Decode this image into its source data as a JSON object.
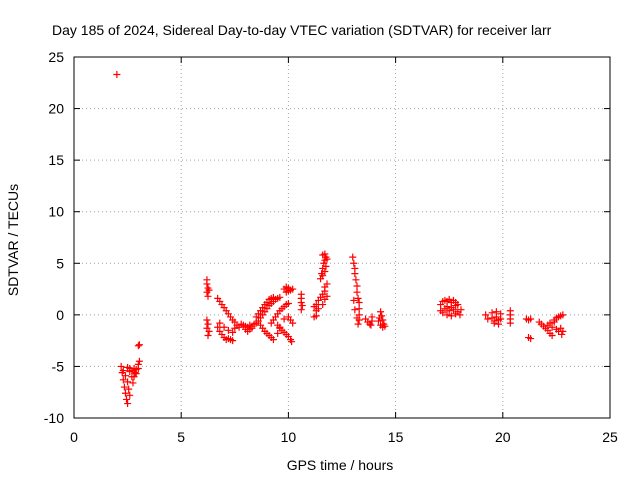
{
  "chart_data": {
    "type": "scatter",
    "title": "Day 185 of 2024, Sidereal Day-to-day VTEC variation (SDTVAR) for receiver larr",
    "xlabel": "GPS time / hours",
    "ylabel": "SDTVAR / TECUs",
    "xlim": [
      0,
      25
    ],
    "ylim": [
      -10,
      25
    ],
    "x_ticks": [
      0,
      5,
      10,
      15,
      20,
      25
    ],
    "y_ticks": [
      -10,
      -5,
      0,
      5,
      10,
      15,
      20,
      25
    ],
    "x_tick_labels": [
      "0",
      "5",
      "10",
      "15",
      "20",
      "25"
    ],
    "y_tick_labels": [
      "-10",
      "-5",
      "0",
      "5",
      "10",
      "15",
      "20",
      "25"
    ],
    "grid": true,
    "marker": "+",
    "series": [
      {
        "name": "SDTVAR",
        "color": "#ff0000",
        "points": [
          [
            2.0,
            23.3
          ],
          [
            2.2,
            -5.0
          ],
          [
            2.25,
            -5.6
          ],
          [
            2.3,
            -6.3
          ],
          [
            2.35,
            -7.0
          ],
          [
            2.4,
            -7.6
          ],
          [
            2.45,
            -8.2
          ],
          [
            2.5,
            -8.6
          ],
          [
            2.3,
            -5.4
          ],
          [
            2.4,
            -5.9
          ],
          [
            2.5,
            -6.5
          ],
          [
            2.55,
            -7.2
          ],
          [
            2.6,
            -7.8
          ],
          [
            2.5,
            -5.1
          ],
          [
            2.6,
            -5.5
          ],
          [
            2.7,
            -6.0
          ],
          [
            2.75,
            -6.6
          ],
          [
            2.8,
            -6.0
          ],
          [
            2.85,
            -5.6
          ],
          [
            2.9,
            -5.3
          ],
          [
            2.6,
            -5.2
          ],
          [
            2.7,
            -5.4
          ],
          [
            2.8,
            -5.2
          ],
          [
            2.9,
            -5.7
          ],
          [
            3.0,
            -5.2
          ],
          [
            3.0,
            -4.8
          ],
          [
            3.05,
            -4.5
          ],
          [
            3.0,
            -3.0
          ],
          [
            3.05,
            -2.9
          ],
          [
            6.2,
            3.4
          ],
          [
            6.2,
            3.0
          ],
          [
            6.25,
            2.6
          ],
          [
            6.2,
            2.2
          ],
          [
            6.25,
            1.8
          ],
          [
            6.3,
            2.4
          ],
          [
            6.2,
            -0.5
          ],
          [
            6.25,
            -0.9
          ],
          [
            6.2,
            -1.3
          ],
          [
            6.3,
            -1.6
          ],
          [
            6.25,
            -2.0
          ],
          [
            6.7,
            1.6
          ],
          [
            6.8,
            1.3
          ],
          [
            6.9,
            1.0
          ],
          [
            7.0,
            0.7
          ],
          [
            7.1,
            0.4
          ],
          [
            7.2,
            0.1
          ],
          [
            7.3,
            -0.2
          ],
          [
            7.4,
            -0.5
          ],
          [
            7.5,
            -0.7
          ],
          [
            6.7,
            -1.2
          ],
          [
            6.8,
            -1.6
          ],
          [
            6.9,
            -1.9
          ],
          [
            7.0,
            -2.2
          ],
          [
            7.1,
            -2.4
          ],
          [
            7.2,
            -2.3
          ],
          [
            7.3,
            -2.4
          ],
          [
            7.4,
            -2.5
          ],
          [
            6.8,
            -0.8
          ],
          [
            7.0,
            -1.2
          ],
          [
            7.2,
            -1.5
          ],
          [
            7.4,
            -1.7
          ],
          [
            7.5,
            -1.3
          ],
          [
            7.6,
            -1.0
          ],
          [
            7.7,
            -1.2
          ],
          [
            7.8,
            -0.9
          ],
          [
            7.9,
            -1.0
          ],
          [
            8.0,
            -1.1
          ],
          [
            8.1,
            -1.2
          ],
          [
            8.2,
            -1.0
          ],
          [
            8.3,
            -1.1
          ],
          [
            8.4,
            -0.9
          ],
          [
            8.0,
            -1.4
          ],
          [
            8.1,
            -1.6
          ],
          [
            8.2,
            -1.4
          ],
          [
            8.3,
            -1.3
          ],
          [
            8.5,
            -0.8
          ],
          [
            8.5,
            -0.2
          ],
          [
            8.6,
            0.1
          ],
          [
            8.7,
            0.4
          ],
          [
            8.8,
            0.7
          ],
          [
            8.9,
            1.0
          ],
          [
            9.0,
            1.2
          ],
          [
            9.1,
            1.5
          ],
          [
            9.2,
            1.6
          ],
          [
            9.3,
            1.7
          ],
          [
            8.6,
            -0.6
          ],
          [
            8.7,
            -0.3
          ],
          [
            8.8,
            0.0
          ],
          [
            8.9,
            0.3
          ],
          [
            9.0,
            0.6
          ],
          [
            9.1,
            0.9
          ],
          [
            9.2,
            1.1
          ],
          [
            9.3,
            1.3
          ],
          [
            9.4,
            1.5
          ],
          [
            9.5,
            1.6
          ],
          [
            9.6,
            1.7
          ],
          [
            8.7,
            -1.0
          ],
          [
            8.8,
            -1.3
          ],
          [
            8.9,
            -1.6
          ],
          [
            9.0,
            -1.8
          ],
          [
            9.1,
            -2.0
          ],
          [
            9.2,
            -2.2
          ],
          [
            9.3,
            -2.4
          ],
          [
            9.2,
            -0.8
          ],
          [
            9.3,
            -0.5
          ],
          [
            9.4,
            -0.2
          ],
          [
            9.5,
            0.1
          ],
          [
            9.6,
            0.4
          ],
          [
            9.7,
            0.6
          ],
          [
            9.8,
            0.8
          ],
          [
            9.9,
            1.0
          ],
          [
            10.0,
            1.1
          ],
          [
            9.5,
            -1.0
          ],
          [
            9.6,
            -1.3
          ],
          [
            9.7,
            -1.5
          ],
          [
            9.8,
            -1.7
          ],
          [
            9.9,
            -1.9
          ],
          [
            10.0,
            -2.1
          ],
          [
            10.1,
            -2.4
          ],
          [
            10.15,
            -2.6
          ],
          [
            9.5,
            -1.8
          ],
          [
            9.6,
            -1.2
          ],
          [
            9.8,
            -0.4
          ],
          [
            10.0,
            -0.2
          ],
          [
            10.1,
            -0.5
          ],
          [
            10.2,
            -0.8
          ],
          [
            9.8,
            2.5
          ],
          [
            9.9,
            2.7
          ],
          [
            10.0,
            2.6
          ],
          [
            10.1,
            2.4
          ],
          [
            10.2,
            2.5
          ],
          [
            9.9,
            2.2
          ],
          [
            10.0,
            2.3
          ],
          [
            10.6,
            2.0
          ],
          [
            10.6,
            1.6
          ],
          [
            10.6,
            1.2
          ],
          [
            10.65,
            0.9
          ],
          [
            10.6,
            0.5
          ],
          [
            11.2,
            -0.2
          ],
          [
            11.3,
            0.4
          ],
          [
            11.3,
            1.0
          ],
          [
            11.4,
            1.4
          ],
          [
            11.5,
            1.7
          ],
          [
            11.6,
            2.0
          ],
          [
            11.7,
            2.3
          ],
          [
            11.7,
            2.7
          ],
          [
            11.8,
            3.0
          ],
          [
            11.2,
            0.8
          ],
          [
            11.3,
            -0.1
          ],
          [
            11.4,
            0.6
          ],
          [
            11.6,
            1.0
          ],
          [
            11.7,
            1.5
          ],
          [
            11.8,
            1.8
          ],
          [
            11.5,
            3.5
          ],
          [
            11.55,
            4.0
          ],
          [
            11.6,
            4.5
          ],
          [
            11.65,
            5.0
          ],
          [
            11.7,
            5.3
          ],
          [
            11.75,
            5.6
          ],
          [
            11.6,
            5.8
          ],
          [
            11.7,
            5.9
          ],
          [
            11.8,
            5.4
          ],
          [
            11.6,
            3.8
          ],
          [
            11.7,
            4.2
          ],
          [
            11.75,
            4.7
          ],
          [
            13.0,
            5.6
          ],
          [
            13.05,
            5.0
          ],
          [
            13.1,
            4.5
          ],
          [
            13.1,
            4.0
          ],
          [
            13.15,
            3.4
          ],
          [
            13.2,
            2.8
          ],
          [
            13.2,
            2.2
          ],
          [
            13.25,
            1.6
          ],
          [
            13.3,
            1.2
          ],
          [
            13.3,
            0.6
          ],
          [
            13.3,
            0.0
          ],
          [
            13.3,
            -0.5
          ],
          [
            13.25,
            -0.9
          ],
          [
            13.2,
            -0.3
          ],
          [
            13.1,
            0.5
          ],
          [
            13.05,
            1.4
          ],
          [
            13.6,
            -0.4
          ],
          [
            13.7,
            -0.7
          ],
          [
            13.8,
            -0.9
          ],
          [
            13.85,
            -1.0
          ],
          [
            13.9,
            -0.6
          ],
          [
            13.9,
            -0.2
          ],
          [
            14.3,
            0.3
          ],
          [
            14.35,
            -0.1
          ],
          [
            14.4,
            -0.5
          ],
          [
            14.45,
            -0.9
          ],
          [
            14.5,
            -1.1
          ],
          [
            14.4,
            -1.2
          ],
          [
            14.3,
            -1.0
          ],
          [
            14.2,
            -0.6
          ],
          [
            14.25,
            -0.3
          ],
          [
            17.1,
            1.0
          ],
          [
            17.2,
            1.3
          ],
          [
            17.3,
            1.4
          ],
          [
            17.4,
            1.3
          ],
          [
            17.5,
            1.5
          ],
          [
            17.6,
            1.2
          ],
          [
            17.7,
            1.4
          ],
          [
            17.8,
            1.2
          ],
          [
            17.9,
            1.0
          ],
          [
            17.1,
            0.4
          ],
          [
            17.2,
            0.2
          ],
          [
            17.3,
            0.6
          ],
          [
            17.4,
            0.0
          ],
          [
            17.5,
            0.4
          ],
          [
            17.6,
            -0.1
          ],
          [
            17.7,
            0.5
          ],
          [
            17.8,
            0.1
          ],
          [
            17.9,
            0.3
          ],
          [
            18.0,
            0.0
          ],
          [
            18.05,
            0.5
          ],
          [
            17.4,
            0.8
          ],
          [
            17.6,
            0.7
          ],
          [
            17.8,
            0.9
          ],
          [
            19.2,
            0.0
          ],
          [
            19.3,
            -0.4
          ],
          [
            19.5,
            -0.3
          ],
          [
            19.6,
            -0.6
          ],
          [
            19.7,
            -0.2
          ],
          [
            19.8,
            -0.5
          ],
          [
            19.9,
            -0.4
          ],
          [
            19.5,
            0.2
          ],
          [
            19.7,
            0.3
          ],
          [
            19.9,
            0.1
          ],
          [
            19.6,
            -0.8
          ],
          [
            19.8,
            -0.9
          ],
          [
            20.35,
            0.4
          ],
          [
            20.35,
            0.0
          ],
          [
            20.35,
            -0.4
          ],
          [
            20.35,
            -0.8
          ],
          [
            21.1,
            -0.4
          ],
          [
            21.2,
            -0.5
          ],
          [
            21.3,
            -0.4
          ],
          [
            21.2,
            -2.2
          ],
          [
            21.3,
            -2.3
          ],
          [
            21.7,
            -0.7
          ],
          [
            21.8,
            -0.9
          ],
          [
            21.9,
            -1.1
          ],
          [
            22.0,
            -1.3
          ],
          [
            22.1,
            -1.5
          ],
          [
            22.2,
            -1.8
          ],
          [
            22.3,
            -2.0
          ],
          [
            22.1,
            -1.0
          ],
          [
            22.2,
            -0.8
          ],
          [
            22.3,
            -1.2
          ],
          [
            22.4,
            -0.7
          ],
          [
            22.5,
            -1.4
          ],
          [
            22.6,
            -1.6
          ],
          [
            22.7,
            -1.3
          ],
          [
            22.4,
            -0.5
          ],
          [
            22.5,
            -0.3
          ],
          [
            22.6,
            -0.2
          ],
          [
            22.7,
            -0.1
          ],
          [
            22.8,
            0.0
          ],
          [
            22.8,
            -1.6
          ],
          [
            22.75,
            -1.9
          ]
        ]
      }
    ]
  }
}
